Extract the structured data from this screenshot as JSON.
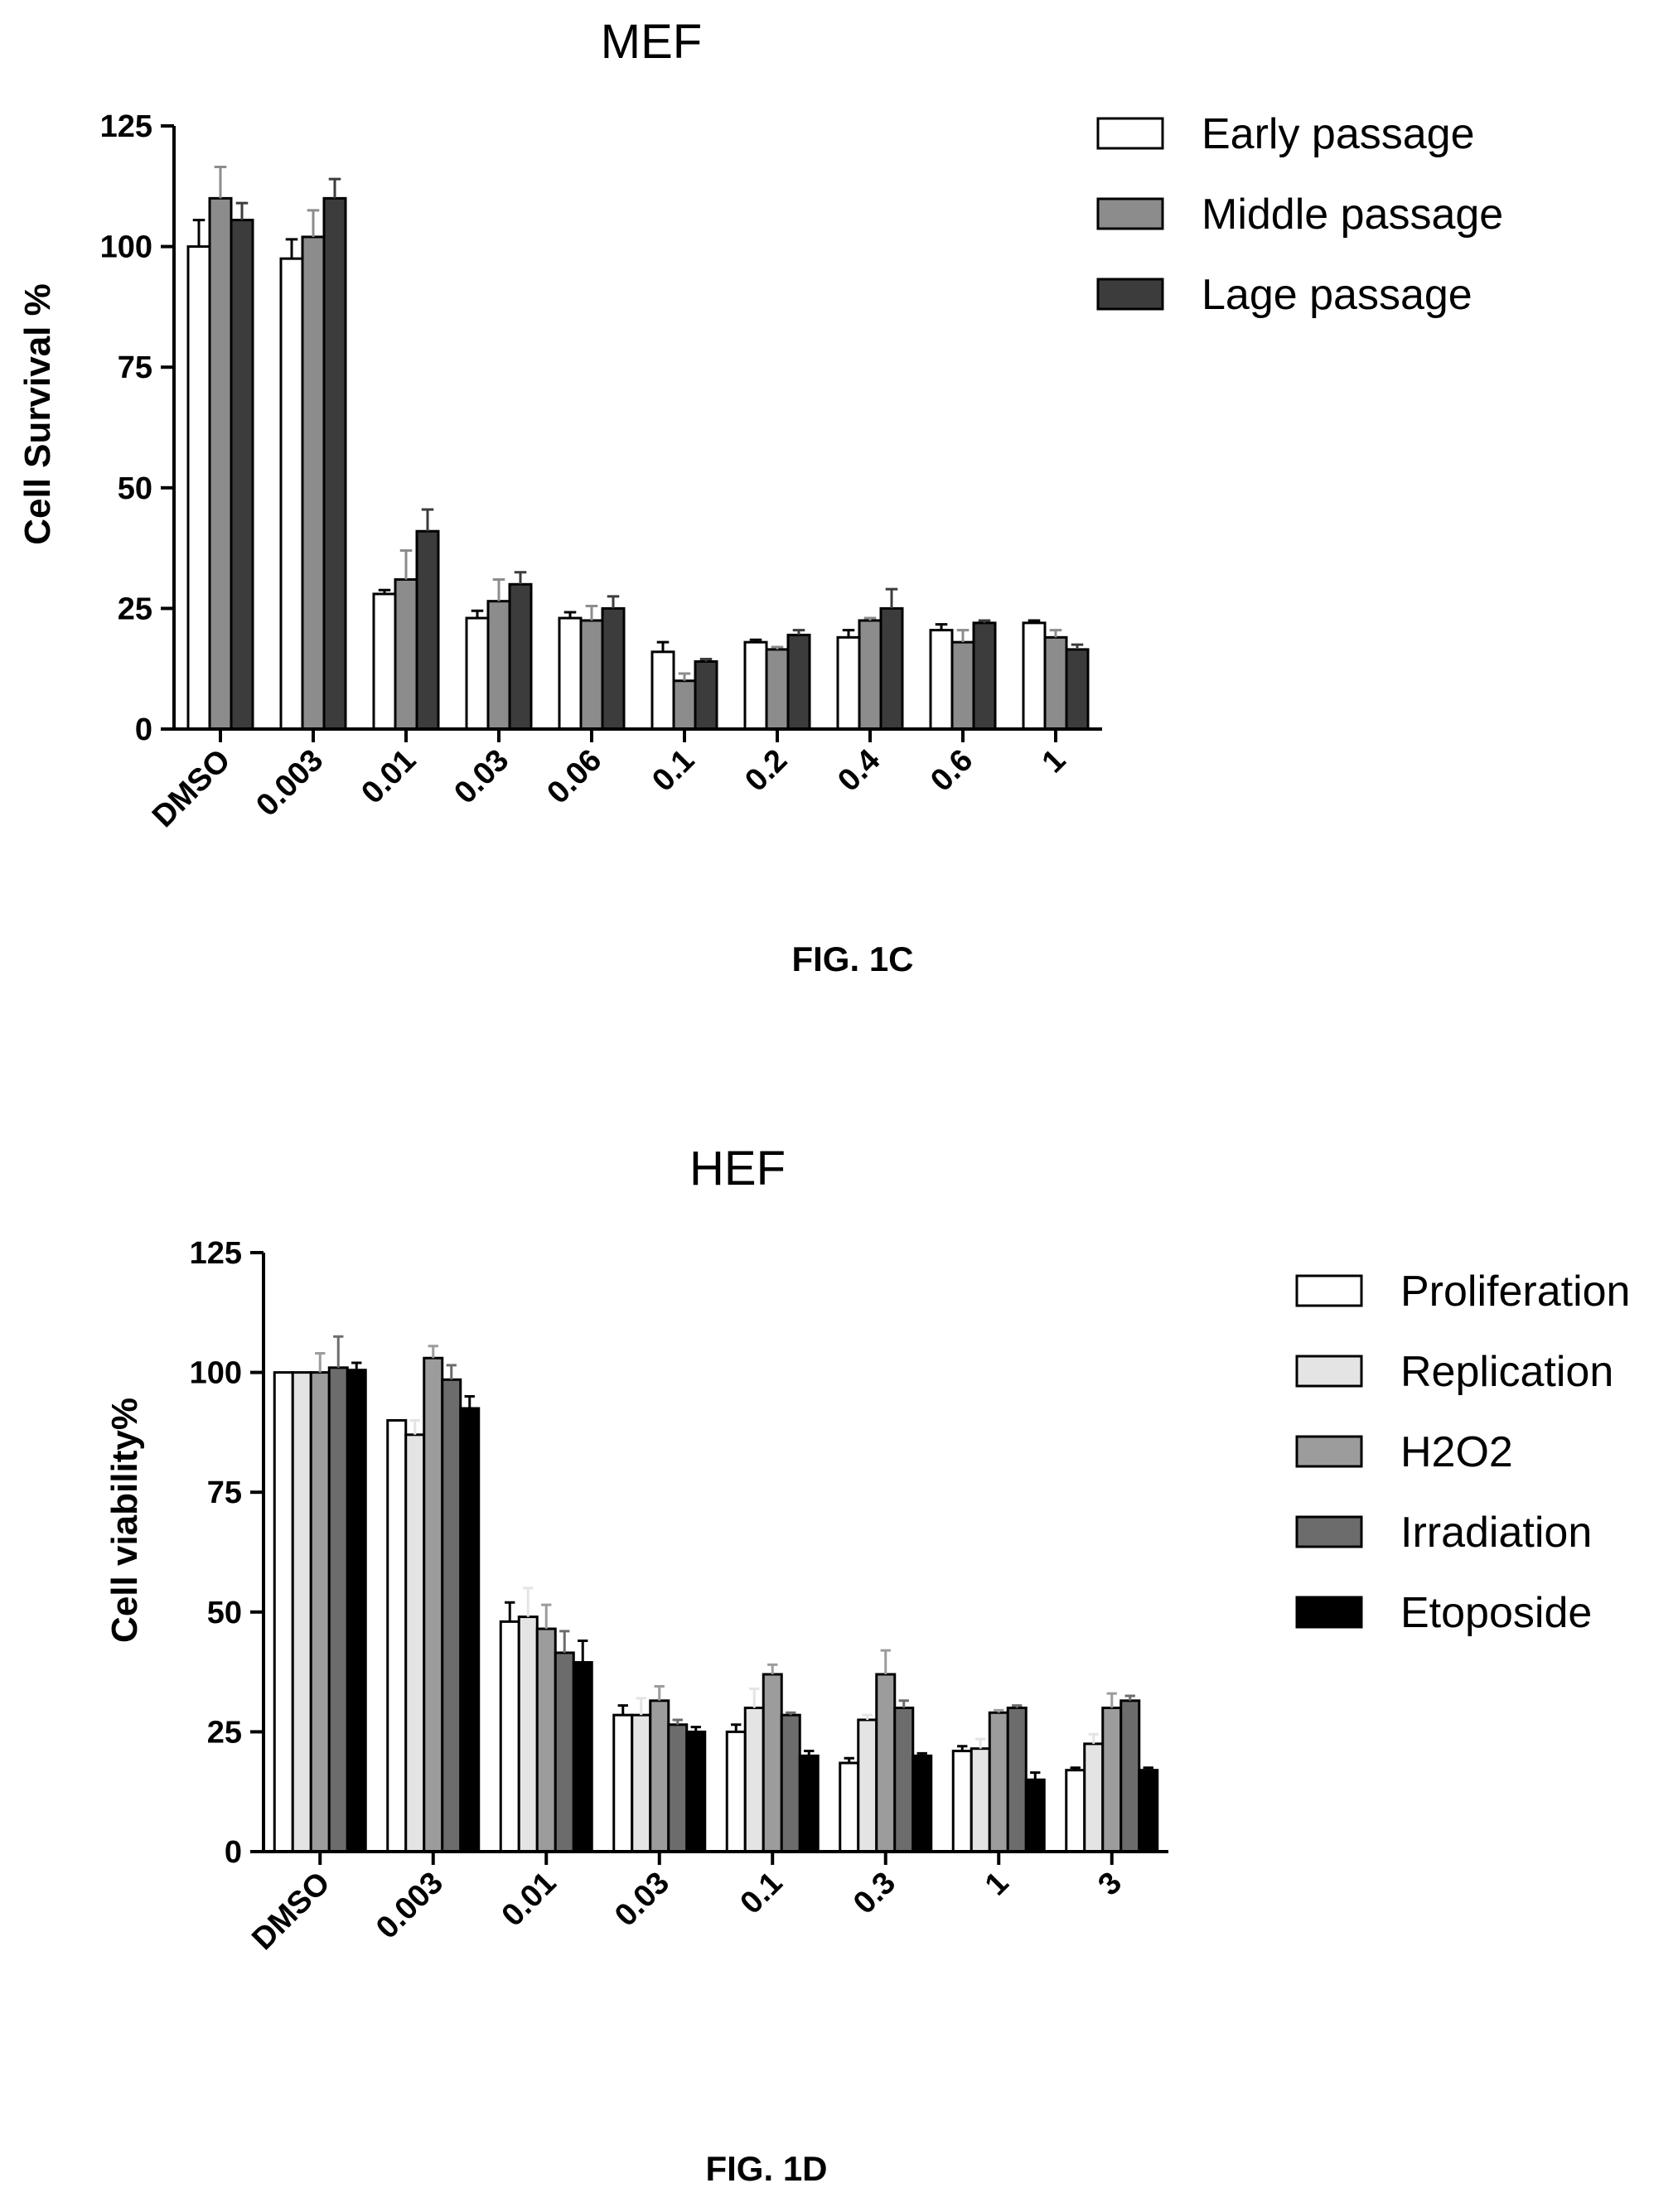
{
  "chart_data": [
    {
      "type": "bar",
      "title": "MEF",
      "xlabel": "",
      "ylabel": "Cell Survival %",
      "ylim": [
        0,
        125
      ],
      "yticks": [
        0,
        25,
        50,
        75,
        100,
        125
      ],
      "categories": [
        "DMSO",
        "0.003",
        "0.01",
        "0.03",
        "0.06",
        "0.1",
        "0.2",
        "0.4",
        "0.6",
        "1"
      ],
      "legend_position": "top-right",
      "grid": false,
      "series": [
        {
          "name": "Early passage",
          "color": "#ffffff",
          "values": [
            100,
            97.5,
            28,
            23,
            23,
            16,
            18,
            19,
            20.5,
            22
          ],
          "errors": [
            5.5,
            4,
            0.8,
            1.5,
            1.2,
            2,
            0.5,
            1.5,
            1.2,
            0.5
          ]
        },
        {
          "name": "Middle passage",
          "color": "#8c8c8c",
          "values": [
            110,
            102,
            31,
            26.5,
            22.5,
            10,
            16.5,
            22.5,
            18,
            19
          ],
          "errors": [
            6.5,
            5.5,
            6,
            4.5,
            3,
            1.5,
            0.5,
            0.5,
            2.5,
            1.5
          ]
        },
        {
          "name": "Lage passage",
          "color": "#3c3c3c",
          "values": [
            105.5,
            110,
            41,
            30,
            25,
            14,
            19.5,
            25,
            22,
            16.5
          ],
          "errors": [
            3.5,
            4,
            4.5,
            2.5,
            2.5,
            0.5,
            1,
            4,
            0.5,
            1
          ]
        }
      ],
      "caption": "FIG. 1C"
    },
    {
      "type": "bar",
      "title": "HEF",
      "xlabel": "",
      "ylabel": "Cell viability%",
      "ylim": [
        0,
        125
      ],
      "yticks": [
        0,
        25,
        50,
        75,
        100,
        125
      ],
      "categories": [
        "DMSO",
        "0.003",
        "0.01",
        "0.03",
        "0.1",
        "0.3",
        "1",
        "3"
      ],
      "legend_position": "top-right",
      "grid": false,
      "series": [
        {
          "name": "Proliferation",
          "color": "#ffffff",
          "values": [
            100,
            90,
            48,
            28.5,
            25,
            18.5,
            21,
            17
          ],
          "errors": [
            0,
            0,
            4,
            2,
            1.5,
            1,
            1,
            0.5
          ]
        },
        {
          "name": "Replication",
          "color": "#e4e4e4",
          "values": [
            100,
            87,
            49,
            28.5,
            30,
            27.5,
            21.5,
            22.5
          ],
          "errors": [
            0,
            3,
            6,
            3.5,
            4,
            1,
            2,
            2
          ]
        },
        {
          "name": "H2O2",
          "color": "#9c9c9c",
          "values": [
            100,
            103,
            46.5,
            31.5,
            37,
            37,
            29,
            30
          ],
          "errors": [
            4,
            2.5,
            5,
            3,
            2,
            5,
            0.5,
            3
          ]
        },
        {
          "name": "Irradiation",
          "color": "#6c6c6c",
          "values": [
            101,
            98.5,
            41.5,
            26.5,
            28.5,
            30,
            30,
            31.5
          ],
          "errors": [
            6.5,
            3,
            4.5,
            1,
            0.5,
            1.5,
            0.5,
            1
          ]
        },
        {
          "name": "Etoposide",
          "color": "#000000",
          "values": [
            100.5,
            92.5,
            39.5,
            25,
            20,
            20,
            15,
            17
          ],
          "errors": [
            1.5,
            2.5,
            4.5,
            1,
            1,
            0.5,
            1.5,
            0.5
          ]
        }
      ],
      "caption": "FIG. 1D"
    }
  ]
}
